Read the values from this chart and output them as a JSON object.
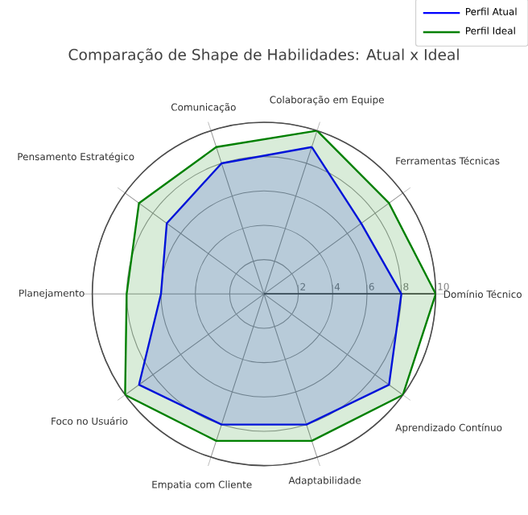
{
  "chart_data": {
    "type": "radar",
    "title": "Comparação de Shape de Habilidades: Atual x Ideal",
    "categories": [
      "Colaboração em Equipe",
      "Ferramentas Técnicas",
      "Domínio Técnico",
      "Aprendizado Contínuo",
      "Adaptabilidade",
      "Empatia com Cliente",
      "Foco no Usuário",
      "Planejamento",
      "Pensamento Estratégico",
      "Comunicação"
    ],
    "series": [
      {
        "name": "Perfil Atual",
        "color": "#0000ff",
        "values": [
          9,
          7,
          8,
          9,
          8,
          8,
          9,
          6,
          7,
          8
        ]
      },
      {
        "name": "Perfil Ideal",
        "color": "#008000",
        "values": [
          10,
          9,
          10,
          10,
          9,
          9,
          10,
          8,
          9,
          9
        ]
      }
    ],
    "ylim": [
      0,
      10
    ],
    "yticks": [
      2,
      4,
      6,
      8,
      10
    ],
    "grid": true,
    "legend": "top right"
  }
}
